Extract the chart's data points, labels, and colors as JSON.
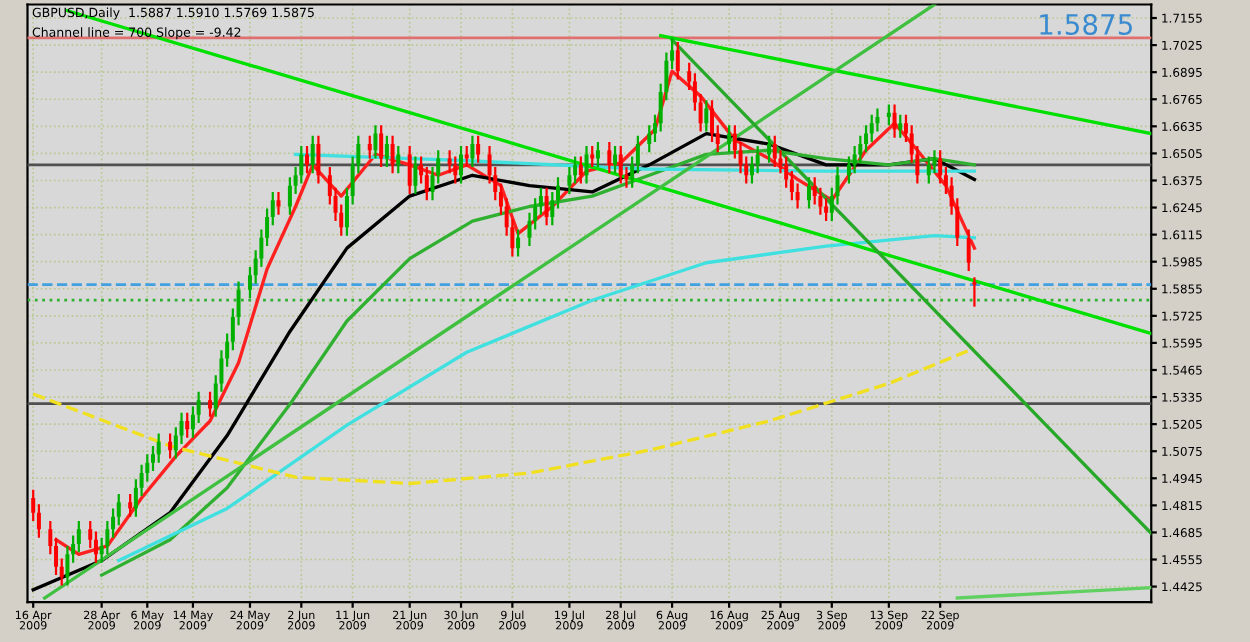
{
  "chart_data": {
    "type": "candlestick",
    "title": "GBPUSD,Daily  1.5887 1.5910 1.5769 1.5875",
    "subtitle": "Channel line = 700 Slope = -9.42",
    "annotations": [
      "1.5875"
    ],
    "x": [
      "2009-04-16",
      "2009-04-17",
      "2009-04-19",
      "2009-04-20",
      "2009-04-21",
      "2009-04-22",
      "2009-04-23",
      "2009-04-24",
      "2009-04-26",
      "2009-04-27",
      "2009-04-28",
      "2009-04-29",
      "2009-04-30",
      "2009-05-01",
      "2009-05-03",
      "2009-05-04",
      "2009-05-05",
      "2009-05-06",
      "2009-05-07",
      "2009-05-08",
      "2009-05-10",
      "2009-05-11",
      "2009-05-12",
      "2009-05-13",
      "2009-05-14",
      "2009-05-15",
      "2009-05-17",
      "2009-05-18",
      "2009-05-19",
      "2009-05-20",
      "2009-05-21",
      "2009-05-22",
      "2009-05-24",
      "2009-05-25",
      "2009-05-26",
      "2009-05-27",
      "2009-05-28",
      "2009-05-29",
      "2009-05-31",
      "2009-06-01",
      "2009-06-02",
      "2009-06-03",
      "2009-06-04",
      "2009-06-05",
      "2009-06-07",
      "2009-06-08",
      "2009-06-09",
      "2009-06-10",
      "2009-06-11",
      "2009-06-12",
      "2009-06-14",
      "2009-06-15",
      "2009-06-16",
      "2009-06-17",
      "2009-06-18",
      "2009-06-19",
      "2009-06-21",
      "2009-06-22",
      "2009-06-23",
      "2009-06-24",
      "2009-06-25",
      "2009-06-26",
      "2009-06-28",
      "2009-06-29",
      "2009-06-30",
      "2009-07-01",
      "2009-07-02",
      "2009-07-03",
      "2009-07-05",
      "2009-07-06",
      "2009-07-07",
      "2009-07-08",
      "2009-07-09",
      "2009-07-10",
      "2009-07-12",
      "2009-07-13",
      "2009-07-14",
      "2009-07-15",
      "2009-07-16",
      "2009-07-17",
      "2009-07-19",
      "2009-07-20",
      "2009-07-21",
      "2009-07-22",
      "2009-07-23",
      "2009-07-24",
      "2009-07-26",
      "2009-07-27",
      "2009-07-28",
      "2009-07-29",
      "2009-07-30",
      "2009-07-31",
      "2009-08-02",
      "2009-08-03",
      "2009-08-04",
      "2009-08-05",
      "2009-08-06",
      "2009-08-07",
      "2009-08-09",
      "2009-08-10",
      "2009-08-11",
      "2009-08-12",
      "2009-08-13",
      "2009-08-14",
      "2009-08-16",
      "2009-08-17",
      "2009-08-18",
      "2009-08-19",
      "2009-08-20",
      "2009-08-21",
      "2009-08-23",
      "2009-08-24",
      "2009-08-25",
      "2009-08-26",
      "2009-08-27",
      "2009-08-28",
      "2009-08-30",
      "2009-08-31",
      "2009-09-01",
      "2009-09-02",
      "2009-09-03",
      "2009-09-04",
      "2009-09-06",
      "2009-09-07",
      "2009-09-08",
      "2009-09-09",
      "2009-09-10",
      "2009-09-11",
      "2009-09-13",
      "2009-09-14",
      "2009-09-15",
      "2009-09-16",
      "2009-09-17",
      "2009-09-18",
      "2009-09-20",
      "2009-09-21",
      "2009-09-22",
      "2009-09-23",
      "2009-09-24",
      "2009-09-25",
      "2009-09-27",
      "2009-09-28"
    ],
    "ohlc": [
      [
        1.485,
        1.489,
        1.474,
        1.478
      ],
      [
        1.478,
        1.482,
        1.466,
        1.47
      ],
      [
        1.47,
        1.474,
        1.458,
        1.462
      ],
      [
        1.462,
        1.466,
        1.448,
        1.452
      ],
      [
        1.452,
        1.456,
        1.443,
        1.447
      ],
      [
        1.447,
        1.462,
        1.443,
        1.458
      ],
      [
        1.458,
        1.467,
        1.454,
        1.463
      ],
      [
        1.463,
        1.474,
        1.459,
        1.47
      ],
      [
        1.47,
        1.474,
        1.461,
        1.465
      ],
      [
        1.465,
        1.469,
        1.454,
        1.458
      ],
      [
        1.458,
        1.466,
        1.454,
        1.462
      ],
      [
        1.462,
        1.474,
        1.458,
        1.47
      ],
      [
        1.47,
        1.48,
        1.466,
        1.476
      ],
      [
        1.476,
        1.487,
        1.472,
        1.483
      ],
      [
        1.483,
        1.487,
        1.476,
        1.48
      ],
      [
        1.48,
        1.494,
        1.476,
        1.49
      ],
      [
        1.49,
        1.501,
        1.486,
        1.497
      ],
      [
        1.497,
        1.506,
        1.493,
        1.502
      ],
      [
        1.502,
        1.51,
        1.498,
        1.506
      ],
      [
        1.506,
        1.516,
        1.502,
        1.512
      ],
      [
        1.512,
        1.516,
        1.504,
        1.508
      ],
      [
        1.508,
        1.519,
        1.504,
        1.515
      ],
      [
        1.515,
        1.526,
        1.511,
        1.522
      ],
      [
        1.522,
        1.526,
        1.514,
        1.518
      ],
      [
        1.518,
        1.529,
        1.514,
        1.525
      ],
      [
        1.525,
        1.536,
        1.521,
        1.532
      ],
      [
        1.532,
        1.536,
        1.524,
        1.528
      ],
      [
        1.528,
        1.544,
        1.524,
        1.54
      ],
      [
        1.54,
        1.556,
        1.536,
        1.552
      ],
      [
        1.552,
        1.564,
        1.548,
        1.56
      ],
      [
        1.56,
        1.576,
        1.556,
        1.572
      ],
      [
        1.572,
        1.589,
        1.568,
        1.585
      ],
      [
        1.585,
        1.596,
        1.581,
        1.592
      ],
      [
        1.592,
        1.604,
        1.588,
        1.6
      ],
      [
        1.6,
        1.614,
        1.596,
        1.61
      ],
      [
        1.61,
        1.624,
        1.606,
        1.62
      ],
      [
        1.62,
        1.632,
        1.616,
        1.628
      ],
      [
        1.628,
        1.632,
        1.621,
        1.625
      ],
      [
        1.625,
        1.639,
        1.621,
        1.635
      ],
      [
        1.635,
        1.644,
        1.631,
        1.64
      ],
      [
        1.64,
        1.654,
        1.636,
        1.65
      ],
      [
        1.65,
        1.654,
        1.641,
        1.645
      ],
      [
        1.645,
        1.659,
        1.641,
        1.655
      ],
      [
        1.655,
        1.659,
        1.636,
        1.64
      ],
      [
        1.64,
        1.644,
        1.626,
        1.63
      ],
      [
        1.63,
        1.634,
        1.618,
        1.622
      ],
      [
        1.622,
        1.626,
        1.611,
        1.615
      ],
      [
        1.615,
        1.634,
        1.611,
        1.63
      ],
      [
        1.63,
        1.649,
        1.626,
        1.645
      ],
      [
        1.645,
        1.659,
        1.641,
        1.655
      ],
      [
        1.655,
        1.659,
        1.648,
        1.652
      ],
      [
        1.652,
        1.664,
        1.648,
        1.66
      ],
      [
        1.66,
        1.664,
        1.644,
        1.648
      ],
      [
        1.648,
        1.659,
        1.644,
        1.655
      ],
      [
        1.655,
        1.659,
        1.641,
        1.645
      ],
      [
        1.645,
        1.654,
        1.641,
        1.65
      ],
      [
        1.65,
        1.654,
        1.631,
        1.635
      ],
      [
        1.635,
        1.649,
        1.631,
        1.645
      ],
      [
        1.645,
        1.649,
        1.636,
        1.64
      ],
      [
        1.64,
        1.644,
        1.628,
        1.632
      ],
      [
        1.632,
        1.644,
        1.628,
        1.64
      ],
      [
        1.64,
        1.652,
        1.636,
        1.648
      ],
      [
        1.648,
        1.652,
        1.641,
        1.645
      ],
      [
        1.645,
        1.649,
        1.636,
        1.64
      ],
      [
        1.64,
        1.654,
        1.636,
        1.65
      ],
      [
        1.65,
        1.654,
        1.644,
        1.648
      ],
      [
        1.648,
        1.659,
        1.644,
        1.655
      ],
      [
        1.655,
        1.659,
        1.646,
        1.65
      ],
      [
        1.65,
        1.654,
        1.636,
        1.64
      ],
      [
        1.64,
        1.644,
        1.628,
        1.632
      ],
      [
        1.632,
        1.636,
        1.621,
        1.625
      ],
      [
        1.625,
        1.629,
        1.611,
        1.615
      ],
      [
        1.615,
        1.619,
        1.601,
        1.605
      ],
      [
        1.605,
        1.614,
        1.601,
        1.61
      ],
      [
        1.61,
        1.622,
        1.606,
        1.618
      ],
      [
        1.618,
        1.629,
        1.614,
        1.625
      ],
      [
        1.625,
        1.634,
        1.621,
        1.63
      ],
      [
        1.63,
        1.634,
        1.616,
        1.62
      ],
      [
        1.62,
        1.632,
        1.616,
        1.628
      ],
      [
        1.628,
        1.639,
        1.624,
        1.635
      ],
      [
        1.635,
        1.644,
        1.631,
        1.64
      ],
      [
        1.64,
        1.649,
        1.636,
        1.645
      ],
      [
        1.645,
        1.649,
        1.636,
        1.64
      ],
      [
        1.64,
        1.654,
        1.636,
        1.65
      ],
      [
        1.65,
        1.654,
        1.644,
        1.648
      ],
      [
        1.648,
        1.656,
        1.644,
        1.652
      ],
      [
        1.652,
        1.656,
        1.641,
        1.645
      ],
      [
        1.645,
        1.654,
        1.641,
        1.65
      ],
      [
        1.65,
        1.654,
        1.636,
        1.64
      ],
      [
        1.64,
        1.644,
        1.634,
        1.638
      ],
      [
        1.638,
        1.649,
        1.634,
        1.645
      ],
      [
        1.645,
        1.659,
        1.641,
        1.655
      ],
      [
        1.655,
        1.664,
        1.651,
        1.66
      ],
      [
        1.66,
        1.669,
        1.656,
        1.665
      ],
      [
        1.665,
        1.684,
        1.661,
        1.68
      ],
      [
        1.68,
        1.699,
        1.676,
        1.695
      ],
      [
        1.695,
        1.706,
        1.691,
        1.7
      ],
      [
        1.7,
        1.704,
        1.686,
        1.69
      ],
      [
        1.69,
        1.694,
        1.681,
        1.685
      ],
      [
        1.685,
        1.689,
        1.671,
        1.675
      ],
      [
        1.675,
        1.679,
        1.661,
        1.665
      ],
      [
        1.665,
        1.676,
        1.661,
        1.672
      ],
      [
        1.672,
        1.676,
        1.656,
        1.66
      ],
      [
        1.66,
        1.664,
        1.651,
        1.655
      ],
      [
        1.655,
        1.664,
        1.651,
        1.66
      ],
      [
        1.66,
        1.664,
        1.648,
        1.652
      ],
      [
        1.652,
        1.656,
        1.641,
        1.645
      ],
      [
        1.645,
        1.649,
        1.636,
        1.64
      ],
      [
        1.64,
        1.649,
        1.636,
        1.645
      ],
      [
        1.645,
        1.654,
        1.641,
        1.65
      ],
      [
        1.65,
        1.659,
        1.646,
        1.655
      ],
      [
        1.655,
        1.659,
        1.644,
        1.648
      ],
      [
        1.648,
        1.652,
        1.641,
        1.645
      ],
      [
        1.645,
        1.649,
        1.634,
        1.638
      ],
      [
        1.638,
        1.642,
        1.628,
        1.632
      ],
      [
        1.632,
        1.636,
        1.624,
        1.628
      ],
      [
        1.628,
        1.639,
        1.624,
        1.635
      ],
      [
        1.635,
        1.639,
        1.626,
        1.63
      ],
      [
        1.63,
        1.634,
        1.621,
        1.625
      ],
      [
        1.625,
        1.629,
        1.618,
        1.622
      ],
      [
        1.622,
        1.634,
        1.618,
        1.63
      ],
      [
        1.63,
        1.644,
        1.626,
        1.64
      ],
      [
        1.64,
        1.649,
        1.636,
        1.645
      ],
      [
        1.645,
        1.654,
        1.641,
        1.65
      ],
      [
        1.65,
        1.659,
        1.646,
        1.655
      ],
      [
        1.655,
        1.664,
        1.651,
        1.66
      ],
      [
        1.66,
        1.669,
        1.656,
        1.665
      ],
      [
        1.665,
        1.672,
        1.661,
        1.668
      ],
      [
        1.668,
        1.674,
        1.664,
        1.67
      ],
      [
        1.67,
        1.674,
        1.658,
        1.662
      ],
      [
        1.662,
        1.669,
        1.658,
        1.665
      ],
      [
        1.665,
        1.669,
        1.656,
        1.66
      ],
      [
        1.66,
        1.664,
        1.646,
        1.65
      ],
      [
        1.65,
        1.654,
        1.636,
        1.64
      ],
      [
        1.64,
        1.649,
        1.636,
        1.645
      ],
      [
        1.645,
        1.652,
        1.641,
        1.648
      ],
      [
        1.648,
        1.652,
        1.636,
        1.64
      ],
      [
        1.64,
        1.644,
        1.631,
        1.635
      ],
      [
        1.635,
        1.639,
        1.621,
        1.625
      ],
      [
        1.625,
        1.629,
        1.606,
        1.61
      ],
      [
        1.61,
        1.614,
        1.594,
        1.598
      ],
      [
        1.5887,
        1.591,
        1.5769,
        1.5875
      ]
    ],
    "colors": [
      "#ff0000",
      "#ff0000",
      "#ff0000",
      "#ff0000",
      "#ff0000",
      "#00b000",
      "#00b000",
      "#00b000",
      "#ff0000",
      "#ff0000",
      "#00b000",
      "#00b000",
      "#00b000",
      "#00b000",
      "#ff0000",
      "#00b000",
      "#00b000",
      "#00b000",
      "#00b000",
      "#00b000",
      "#ff0000",
      "#00b000",
      "#00b000",
      "#ff0000",
      "#00b000",
      "#00b000",
      "#ff0000",
      "#00b000",
      "#00b000",
      "#00b000",
      "#00b000",
      "#00b000",
      "#00b000",
      "#00b000",
      "#00b000",
      "#00b000",
      "#00b000",
      "#ff0000",
      "#00b000",
      "#00b000",
      "#00b000",
      "#ff0000",
      "#00b000",
      "#ff0000",
      "#ff0000",
      "#ff0000",
      "#ff0000",
      "#00b000",
      "#00b000",
      "#00b000",
      "#ff0000",
      "#00b000",
      "#ff0000",
      "#00b000",
      "#ff0000",
      "#00b000",
      "#ff0000",
      "#00b000",
      "#ff0000",
      "#ff0000",
      "#00b000",
      "#00b000",
      "#ff0000",
      "#ff0000",
      "#00b000",
      "#ff0000",
      "#00b000",
      "#ff0000",
      "#ff0000",
      "#ff0000",
      "#ff0000",
      "#ff0000",
      "#ff0000",
      "#00b000",
      "#00b000",
      "#00b000",
      "#00b000",
      "#ff0000",
      "#00b000",
      "#00b000",
      "#00b000",
      "#00b000",
      "#ff0000",
      "#00b000",
      "#ff0000",
      "#00b000",
      "#ff0000",
      "#00b000",
      "#ff0000",
      "#ff0000",
      "#00b000",
      "#00b000",
      "#00b000",
      "#00b000",
      "#00b000",
      "#00b000",
      "#00b000",
      "#ff0000",
      "#ff0000",
      "#ff0000",
      "#ff0000",
      "#00b000",
      "#ff0000",
      "#ff0000",
      "#00b000",
      "#ff0000",
      "#ff0000",
      "#ff0000",
      "#00b000",
      "#00b000",
      "#00b000",
      "#ff0000",
      "#ff0000",
      "#ff0000",
      "#ff0000",
      "#ff0000",
      "#00b000",
      "#ff0000",
      "#ff0000",
      "#ff0000",
      "#00b000",
      "#00b000",
      "#00b000",
      "#00b000",
      "#00b000",
      "#00b000",
      "#00b000",
      "#00b000",
      "#00b000",
      "#ff0000",
      "#00b000",
      "#ff0000",
      "#ff0000",
      "#ff0000",
      "#00b000",
      "#00b000",
      "#ff0000",
      "#ff0000",
      "#ff0000",
      "#ff0000",
      "#ff0000",
      "#ff0000"
    ],
    "series": [
      {
        "type": "line",
        "color": "#ff2020",
        "x": [
          "2009-04-20",
          "2009-04-24",
          "2009-04-29",
          "2009-05-05",
          "2009-05-11",
          "2009-05-17",
          "2009-05-22",
          "2009-05-27",
          "2009-06-01",
          "2009-06-04",
          "2009-06-09",
          "2009-06-15",
          "2009-06-21",
          "2009-06-26",
          "2009-07-01",
          "2009-07-07",
          "2009-07-10",
          "2009-07-16",
          "2009-07-22",
          "2009-07-28",
          "2009-08-03",
          "2009-08-06",
          "2009-08-11",
          "2009-08-17",
          "2009-08-23",
          "2009-08-28",
          "2009-09-03",
          "2009-09-09",
          "2009-09-14",
          "2009-09-18",
          "2009-09-23",
          "2009-09-28"
        ],
        "values": [
          1.465,
          1.458,
          1.462,
          1.485,
          1.505,
          1.522,
          1.55,
          1.595,
          1.625,
          1.645,
          1.63,
          1.65,
          1.645,
          1.64,
          1.645,
          1.635,
          1.612,
          1.625,
          1.642,
          1.646,
          1.662,
          1.69,
          1.678,
          1.657,
          1.648,
          1.638,
          1.628,
          1.652,
          1.665,
          1.652,
          1.635,
          1.605
        ]
      },
      {
        "type": "line",
        "color": "#000000",
        "x": [
          "2009-04-16",
          "2009-04-28",
          "2009-05-10",
          "2009-05-20",
          "2009-05-31",
          "2009-06-10",
          "2009-06-21",
          "2009-07-02",
          "2009-07-12",
          "2009-07-23",
          "2009-08-02",
          "2009-08-12",
          "2009-08-23",
          "2009-09-02",
          "2009-09-13",
          "2009-09-21",
          "2009-09-28"
        ],
        "values": [
          1.441,
          1.455,
          1.478,
          1.515,
          1.565,
          1.605,
          1.63,
          1.64,
          1.635,
          1.632,
          1.645,
          1.66,
          1.655,
          1.645,
          1.645,
          1.648,
          1.638
        ]
      },
      {
        "type": "line",
        "color": "#30b030",
        "x": [
          "2009-04-28",
          "2009-05-10",
          "2009-05-20",
          "2009-05-31",
          "2009-06-10",
          "2009-06-21",
          "2009-07-02",
          "2009-07-12",
          "2009-07-23",
          "2009-08-02",
          "2009-08-12",
          "2009-08-23",
          "2009-09-02",
          "2009-09-13",
          "2009-09-21",
          "2009-09-28"
        ],
        "values": [
          1.448,
          1.465,
          1.49,
          1.53,
          1.57,
          1.6,
          1.618,
          1.625,
          1.63,
          1.64,
          1.65,
          1.652,
          1.648,
          1.645,
          1.648,
          1.645
        ]
      },
      {
        "type": "line",
        "color": "#40e0e0",
        "x": [
          "2009-05-01",
          "2009-05-20",
          "2009-06-10",
          "2009-07-01",
          "2009-07-23",
          "2009-08-12",
          "2009-09-02",
          "2009-09-21",
          "2009-09-28"
        ],
        "values": [
          1.455,
          1.48,
          1.52,
          1.555,
          1.58,
          1.598,
          1.606,
          1.611,
          1.61
        ]
      },
      {
        "type": "line",
        "color": "#40e0e0",
        "x": [
          "2009-06-01",
          "2009-07-01",
          "2009-08-01",
          "2009-09-01",
          "2009-09-28"
        ],
        "values": [
          1.65,
          1.647,
          1.643,
          1.642,
          1.642
        ]
      },
      {
        "type": "line",
        "color": "#f0e020",
        "line_style": "dashed",
        "x": [
          "2009-04-16",
          "2009-05-10",
          "2009-06-01",
          "2009-06-21",
          "2009-07-12",
          "2009-08-02",
          "2009-08-23",
          "2009-09-13",
          "2009-09-28"
        ],
        "values": [
          1.535,
          1.51,
          1.495,
          1.492,
          1.497,
          1.508,
          1.522,
          1.54,
          1.557
        ]
      },
      {
        "type": "line",
        "color": "#00e000",
        "x": [
          "2009-04-22",
          "2009-10-29"
        ],
        "values": [
          1.719,
          1.564
        ]
      },
      {
        "type": "line",
        "color": "#00e000",
        "x": [
          "2009-08-04",
          "2009-10-29"
        ],
        "values": [
          1.707,
          1.66
        ]
      },
      {
        "type": "line",
        "color": "#40c040",
        "x": [
          "2009-04-18",
          "2009-09-21"
        ],
        "values": [
          1.437,
          1.722
        ]
      },
      {
        "type": "line",
        "color": "#28a828",
        "x": [
          "2009-08-06",
          "2009-10-29"
        ],
        "values": [
          1.705,
          1.468
        ]
      },
      {
        "type": "line",
        "color": "#60d060",
        "x": [
          "2009-09-25",
          "2009-10-29"
        ],
        "values": [
          1.437,
          1.442
        ]
      }
    ],
    "ref_lines": [
      {
        "axis": "y",
        "value": 1.706,
        "color": "#e07070"
      },
      {
        "axis": "y",
        "value": 1.645,
        "color": "#505050"
      },
      {
        "axis": "y",
        "value": 1.5304,
        "color": "#505050"
      },
      {
        "axis": "y",
        "value": 1.5875,
        "color": "#40a0e0",
        "line_style": "dashed"
      },
      {
        "axis": "y",
        "value": 1.58,
        "color": "#30b030",
        "line_style": "dotted"
      }
    ],
    "xlim": [
      "2009-04-15",
      "2009-10-29"
    ],
    "ylim": [
      1.435,
      1.722
    ],
    "xticks": [
      {
        "value": "2009-04-16",
        "label": "16 Apr 2009"
      },
      {
        "value": "2009-04-28",
        "label": "28 Apr 2009"
      },
      {
        "value": "2009-05-06",
        "label": "6 May 2009"
      },
      {
        "value": "2009-05-14",
        "label": "14 May 2009"
      },
      {
        "value": "2009-05-24",
        "label": "24 May 2009"
      },
      {
        "value": "2009-06-02",
        "label": "2 Jun 2009"
      },
      {
        "value": "2009-06-11",
        "label": "11 Jun 2009"
      },
      {
        "value": "2009-06-21",
        "label": "21 Jun 2009"
      },
      {
        "value": "2009-06-30",
        "label": "30 Jun 2009"
      },
      {
        "value": "2009-07-09",
        "label": "9 Jul 2009"
      },
      {
        "value": "2009-07-19",
        "label": "19 Jul 2009"
      },
      {
        "value": "2009-07-28",
        "label": "28 Jul 2009"
      },
      {
        "value": "2009-08-06",
        "label": "6 Aug 2009"
      },
      {
        "value": "2009-08-16",
        "label": "16 Aug 2009"
      },
      {
        "value": "2009-08-25",
        "label": "25 Aug 2009"
      },
      {
        "value": "2009-09-03",
        "label": "3 Sep 2009"
      },
      {
        "value": "2009-09-13",
        "label": "13 Sep 2009"
      },
      {
        "value": "2009-09-22",
        "label": "22 Sep 2009"
      }
    ],
    "yticks": [
      1.4425,
      1.4555,
      1.4685,
      1.4815,
      1.4945,
      1.5075,
      1.5205,
      1.5335,
      1.5465,
      1.5595,
      1.5725,
      1.5855,
      1.5985,
      1.6115,
      1.6245,
      1.6375,
      1.6505,
      1.6635,
      1.6765,
      1.6895,
      1.7025,
      1.7155
    ],
    "grid": true
  }
}
